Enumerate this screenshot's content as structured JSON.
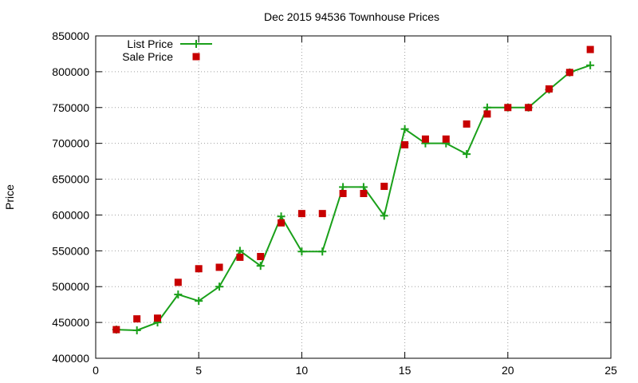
{
  "chart_data": {
    "type": "line",
    "title": "Dec 2015 94536 Townhouse Prices",
    "xlabel": "",
    "ylabel": "Price",
    "xlim": [
      0,
      25
    ],
    "ylim": [
      400000,
      850000
    ],
    "x_ticks": [
      0,
      5,
      10,
      15,
      20,
      25
    ],
    "y_ticks": [
      400000,
      450000,
      500000,
      550000,
      600000,
      650000,
      700000,
      750000,
      800000,
      850000
    ],
    "grid": true,
    "legend_position": "top-left",
    "series": [
      {
        "name": "List Price",
        "style": "line-with-plus-markers",
        "color": "#1aa01a",
        "x": [
          1,
          2,
          3,
          4,
          5,
          6,
          7,
          8,
          9,
          10,
          11,
          12,
          13,
          14,
          15,
          16,
          17,
          18,
          19,
          20,
          21,
          22,
          23,
          24
        ],
        "y": [
          440000,
          439000,
          450000,
          489000,
          480000,
          500000,
          550000,
          529000,
          598000,
          549000,
          549000,
          639000,
          639000,
          599000,
          720000,
          700000,
          700000,
          685000,
          750000,
          750000,
          750000,
          775000,
          799000,
          809000
        ]
      },
      {
        "name": "Sale Price",
        "style": "square-markers",
        "color": "#c80000",
        "x": [
          1,
          2,
          3,
          4,
          5,
          6,
          7,
          8,
          9,
          10,
          11,
          12,
          13,
          14,
          15,
          16,
          17,
          18,
          19,
          20,
          21,
          22,
          23,
          24
        ],
        "y": [
          440000,
          455000,
          456000,
          506000,
          525000,
          527000,
          541000,
          542000,
          589000,
          602000,
          602000,
          630000,
          630000,
          640000,
          698000,
          706000,
          706000,
          727000,
          741000,
          750000,
          750000,
          776000,
          799000,
          831000
        ]
      }
    ]
  }
}
